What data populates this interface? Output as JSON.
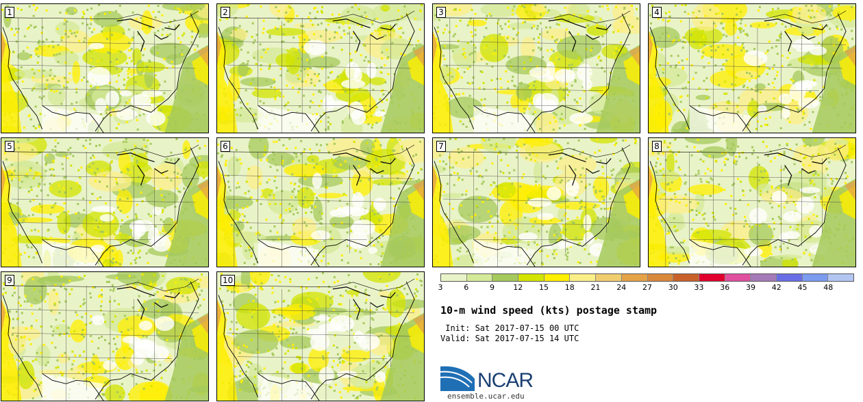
{
  "panels": [
    {
      "label": "1"
    },
    {
      "label": "2"
    },
    {
      "label": "3"
    },
    {
      "label": "4"
    },
    {
      "label": "5"
    },
    {
      "label": "6"
    },
    {
      "label": "7"
    },
    {
      "label": "8"
    },
    {
      "label": "9"
    },
    {
      "label": "10"
    }
  ],
  "colorbar": {
    "colors": [
      "#e9f3c8",
      "#d4ea98",
      "#a5c95c",
      "#d2e400",
      "#ffef00",
      "#fbef8a",
      "#f0cd6e",
      "#e6a247",
      "#d9883a",
      "#c9622a",
      "#e1002d",
      "#e0509e",
      "#a47bb8",
      "#6a6ee6",
      "#7c9cf0",
      "#b3c6f2"
    ],
    "ticks": [
      "3",
      "6",
      "9",
      "12",
      "15",
      "18",
      "21",
      "24",
      "27",
      "30",
      "33",
      "36",
      "39",
      "42",
      "45",
      "48"
    ]
  },
  "title": "10-m wind speed (kts) postage stamp",
  "init": " Init: Sat 2017-07-15 00 UTC",
  "valid": "Valid: Sat 2017-07-15 14 UTC",
  "logo": {
    "text": "NCAR",
    "site": "ensemble.ucar.edu"
  }
}
